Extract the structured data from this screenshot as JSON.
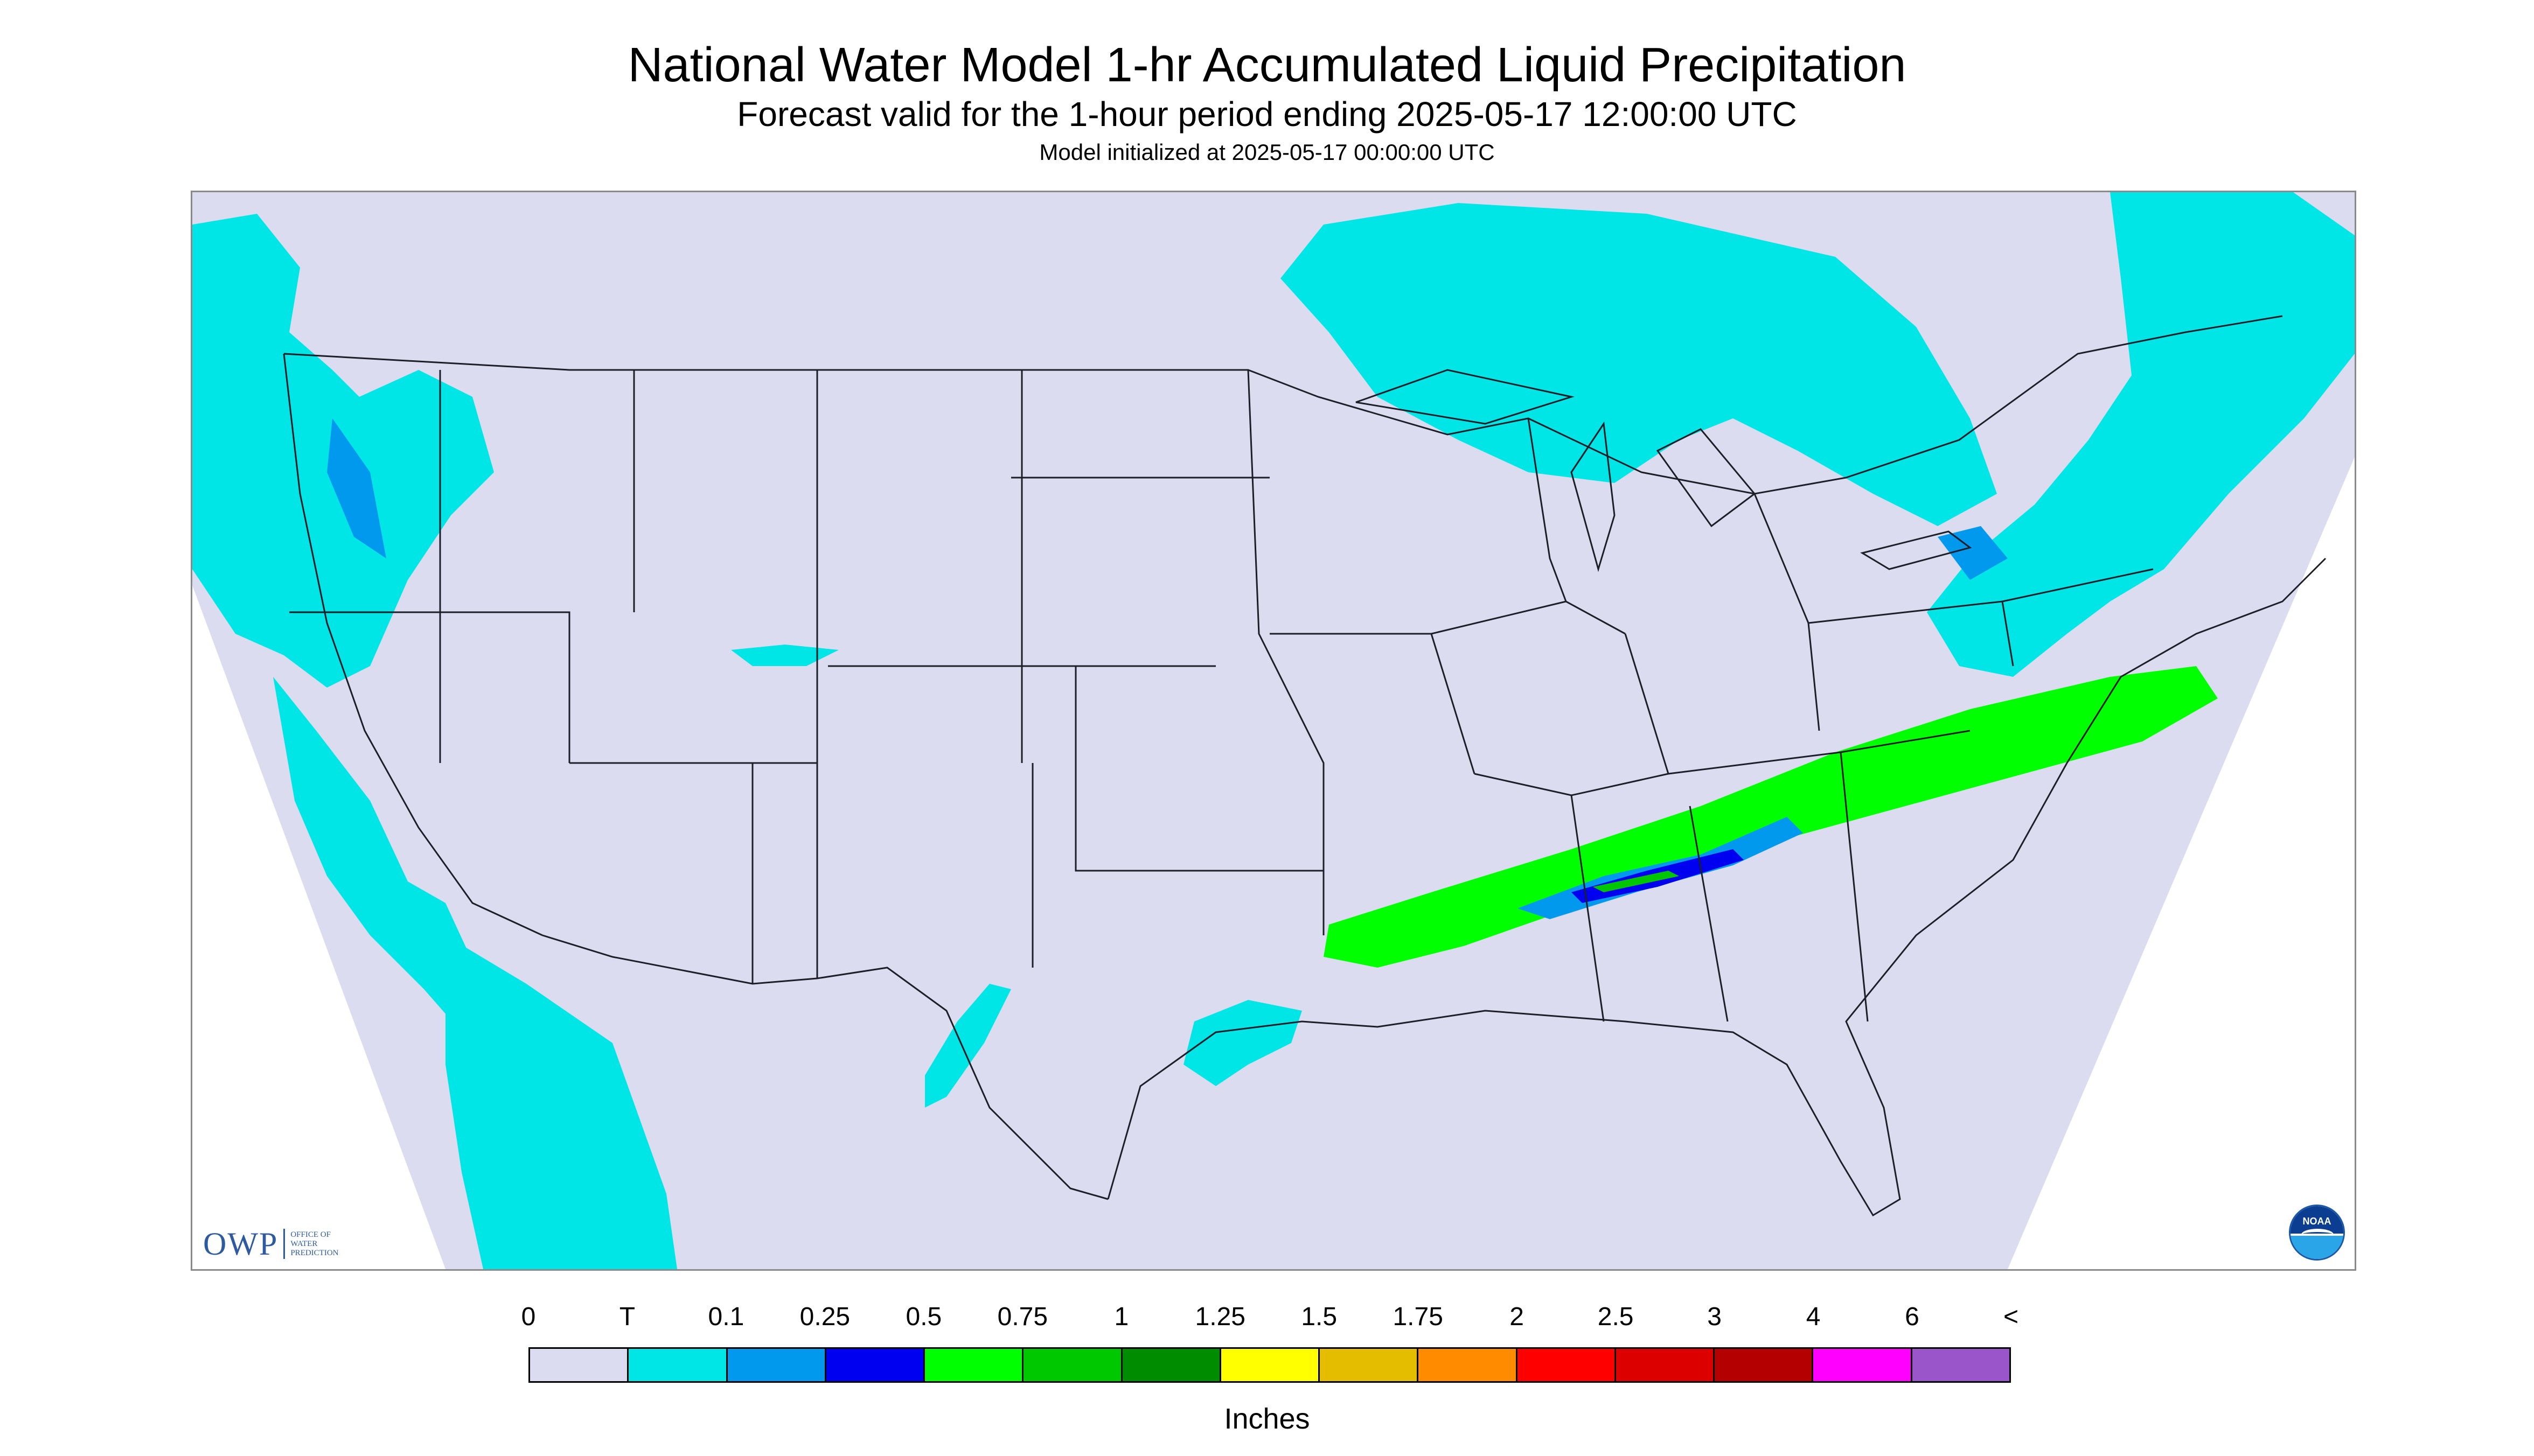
{
  "title": "National Water Model 1-hr Accumulated Liquid Precipitation",
  "subtitle": "Forecast valid for the 1-hour period ending 2025-05-17 12:00:00 UTC",
  "initialized": "Model initialized at 2025-05-17 00:00:00 UTC",
  "logos": {
    "owp": {
      "mark": "OWP",
      "text": "OFFICE OF WATER PREDICTION"
    },
    "noaa": {
      "text": "NOAA"
    }
  },
  "colors": {
    "domain": "#dcdcf0",
    "outside": "#ffffff",
    "boundary": "#1e1e28"
  },
  "legend": {
    "units": "Inches",
    "labels": [
      "0",
      "T",
      "0.1",
      "0.25",
      "0.5",
      "0.75",
      "1",
      "1.25",
      "1.5",
      "1.75",
      "2",
      "2.5",
      "3",
      "4",
      "6",
      "<"
    ],
    "bins": [
      {
        "range": "0-T",
        "color": "#dcdcf0"
      },
      {
        "range": "T-0.1",
        "color": "#00e5e5"
      },
      {
        "range": "0.1-0.25",
        "color": "#0099ee"
      },
      {
        "range": "0.25-0.5",
        "color": "#0000f0"
      },
      {
        "range": "0.5-0.75",
        "color": "#00ff00"
      },
      {
        "range": "0.75-1",
        "color": "#00c800"
      },
      {
        "range": "1-1.25",
        "color": "#008c00"
      },
      {
        "range": "1.25-1.5",
        "color": "#ffff00"
      },
      {
        "range": "1.5-1.75",
        "color": "#e5bd00"
      },
      {
        "range": "1.75-2",
        "color": "#ff8c00"
      },
      {
        "range": "2-2.5",
        "color": "#ff0000"
      },
      {
        "range": "2.5-3",
        "color": "#dc0000"
      },
      {
        "range": "3-4",
        "color": "#b40000"
      },
      {
        "range": "4-6",
        "color": "#ff00ff"
      },
      {
        "range": "6+",
        "color": "#9955c9"
      }
    ]
  },
  "precip_areas": [
    {
      "name": "pacific-northwest",
      "level": "T-0.1"
    },
    {
      "name": "california-coast",
      "level": "T-0.1"
    },
    {
      "name": "baja-pacific",
      "level": "T-0.1"
    },
    {
      "name": "great-lakes",
      "level": "T-0.1"
    },
    {
      "name": "northeast",
      "level": "T-0.1"
    },
    {
      "name": "southeast-band",
      "level": "0.5-0.75"
    },
    {
      "name": "gulf-coast",
      "level": "T-0.1"
    }
  ]
}
